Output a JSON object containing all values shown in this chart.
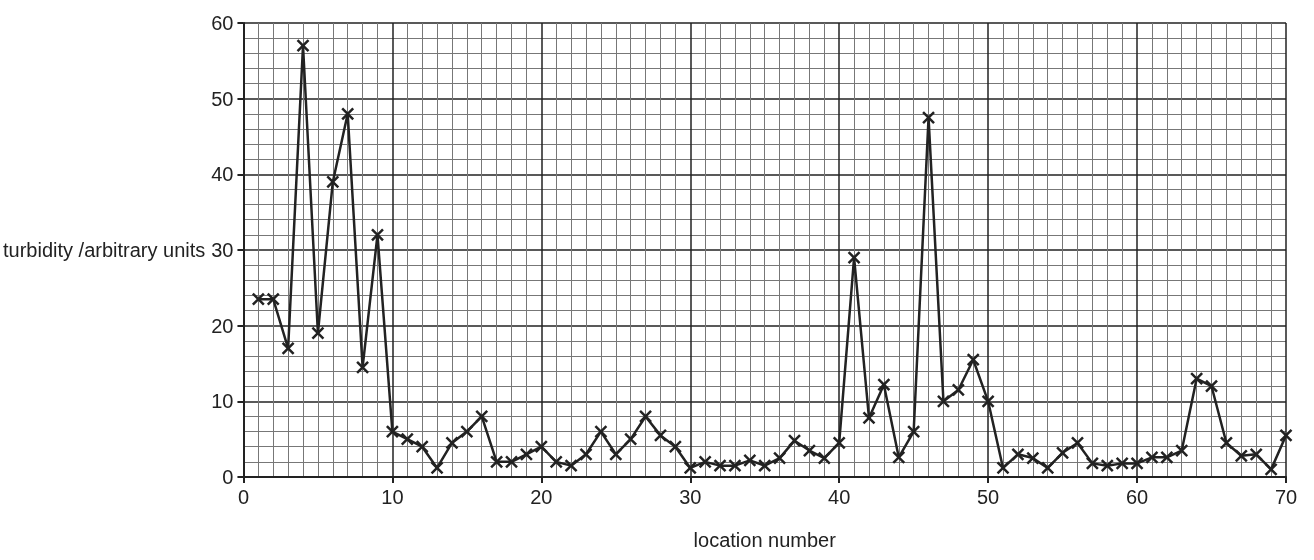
{
  "chart_data": {
    "type": "line",
    "xlabel": "location number",
    "ylabel": "turbidity /arbitrary units",
    "x": [
      1,
      2,
      3,
      4,
      5,
      6,
      7,
      8,
      9,
      10,
      11,
      12,
      13,
      14,
      15,
      16,
      17,
      18,
      19,
      20,
      21,
      22,
      23,
      24,
      25,
      26,
      27,
      28,
      29,
      30,
      31,
      32,
      33,
      34,
      35,
      36,
      37,
      38,
      39,
      40,
      41,
      42,
      43,
      44,
      45,
      46,
      47,
      48,
      49,
      50,
      51,
      52,
      53,
      54,
      55,
      56,
      57,
      58,
      59,
      60,
      61,
      62,
      63,
      64,
      65,
      66,
      67,
      68,
      69,
      70
    ],
    "series": [
      {
        "color": "#222222",
        "values": [
          23.5,
          23.5,
          17,
          57,
          19,
          39,
          48,
          14.5,
          32,
          6,
          5,
          4,
          1.2,
          4.5,
          6,
          8,
          2,
          2,
          3,
          4,
          2,
          1.5,
          3,
          6,
          3,
          5,
          8,
          5.5,
          4,
          1.2,
          2,
          1.5,
          1.5,
          2.2,
          1.5,
          2.5,
          4.8,
          3.5,
          2.5,
          4.5,
          29,
          7.8,
          12.2,
          2.6,
          6,
          47.5,
          10,
          11.5,
          15.5,
          10,
          1.2,
          3,
          2.5,
          1.2,
          3.2,
          4.5,
          1.8,
          1.5,
          1.8,
          1.8,
          2.6,
          2.6,
          3.5,
          13,
          12,
          4.5,
          2.8,
          3,
          1,
          5.5
        ]
      }
    ],
    "xlim": [
      0,
      70
    ],
    "xticks": [
      0,
      10,
      20,
      30,
      40,
      50,
      60,
      70
    ],
    "ylim": [
      0,
      60
    ],
    "yticks": [
      0,
      10,
      20,
      30,
      40,
      50,
      60
    ],
    "grid": true,
    "marker": "cross",
    "line_style": "solid"
  }
}
